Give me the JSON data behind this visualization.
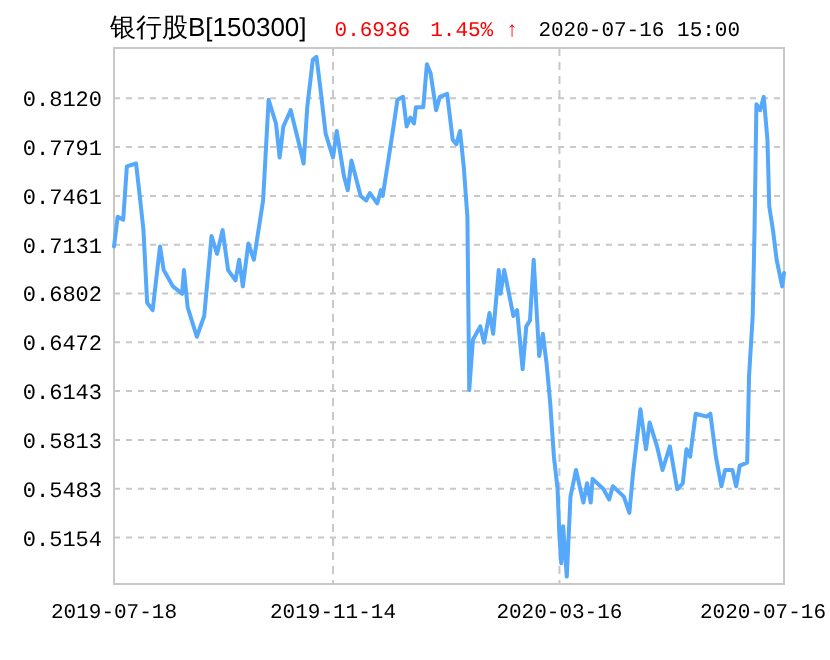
{
  "chart_data": {
    "type": "line",
    "title": "银行股B[150300]",
    "annotations": [
      "0.6936",
      "1.45% ↑",
      "2020-07-16 15:00"
    ],
    "xlim": [
      "2019-07-18",
      "2020-07-16"
    ],
    "xticks": [
      {
        "value": "2019-07-18",
        "label": "2019-07-18"
      },
      {
        "value": "2019-11-14",
        "label": "2019-11-14"
      },
      {
        "value": "2020-03-16",
        "label": "2020-03-16"
      },
      {
        "value": "2020-07-16",
        "label": "2020-07-16"
      }
    ],
    "ylim": [
      0.484,
      0.846
    ],
    "yticks": [
      {
        "value": 0.5154,
        "label": "0.5154"
      },
      {
        "value": 0.5483,
        "label": "0.5483"
      },
      {
        "value": 0.5813,
        "label": "0.5813"
      },
      {
        "value": 0.6143,
        "label": "0.6143"
      },
      {
        "value": 0.6472,
        "label": "0.6472"
      },
      {
        "value": 0.6802,
        "label": "0.6802"
      },
      {
        "value": 0.7131,
        "label": "0.7131"
      },
      {
        "value": 0.7461,
        "label": "0.7461"
      },
      {
        "value": 0.7791,
        "label": "0.7791"
      },
      {
        "value": 0.812,
        "label": "0.8120"
      }
    ],
    "grid": true,
    "marker": "none",
    "line_style": "solid",
    "x": [
      "2019-07-18",
      "2019-07-20",
      "2019-07-23",
      "2019-07-25",
      "2019-07-30",
      "2019-08-01",
      "2019-08-03",
      "2019-08-05",
      "2019-08-08",
      "2019-08-12",
      "2019-08-14",
      "2019-08-19",
      "2019-08-24",
      "2019-08-25",
      "2019-08-27",
      "2019-09-01",
      "2019-09-05",
      "2019-09-09",
      "2019-09-12",
      "2019-09-15",
      "2019-09-18",
      "2019-09-22",
      "2019-09-24",
      "2019-09-26",
      "2019-09-29",
      "2019-10-02",
      "2019-10-07",
      "2019-10-10",
      "2019-10-14",
      "2019-10-16",
      "2019-10-18",
      "2019-10-22",
      "2019-10-27",
      "2019-10-29",
      "2019-10-31",
      "2019-11-03",
      "2019-11-05",
      "2019-11-07",
      "2019-11-10",
      "2019-11-14",
      "2019-11-16",
      "2019-11-20",
      "2019-11-22",
      "2019-11-24",
      "2019-11-29",
      "2019-12-02",
      "2019-12-04",
      "2019-12-08",
      "2019-12-10",
      "2019-12-11",
      "2019-12-16",
      "2019-12-19",
      "2019-12-22",
      "2019-12-24",
      "2019-12-26",
      "2019-12-28",
      "2019-12-29",
      "2020-01-02",
      "2020-01-04",
      "2020-01-06",
      "2020-01-09",
      "2020-01-11",
      "2020-01-15",
      "2020-01-18",
      "2020-01-20",
      "2020-01-22",
      "2020-01-24",
      "2020-01-26",
      "2020-01-27",
      "2020-01-29",
      "2020-02-02",
      "2020-02-04",
      "2020-02-07",
      "2020-02-09",
      "2020-02-12",
      "2020-02-13",
      "2020-02-15",
      "2020-02-20",
      "2020-02-22",
      "2020-02-25",
      "2020-02-27",
      "2020-02-29",
      "2020-03-02",
      "2020-03-05",
      "2020-03-07",
      "2020-03-09",
      "2020-03-11",
      "2020-03-13",
      "2020-03-15",
      "2020-03-16",
      "2020-03-17",
      "2020-03-18",
      "2020-03-20",
      "2020-03-22",
      "2020-03-25",
      "2020-03-29",
      "2020-03-31",
      "2020-04-02",
      "2020-04-03",
      "2020-04-09",
      "2020-04-12",
      "2020-04-14",
      "2020-04-20",
      "2020-04-23",
      "2020-04-25",
      "2020-04-29",
      "2020-05-02",
      "2020-05-04",
      "2020-05-08",
      "2020-05-11",
      "2020-05-15",
      "2020-05-19",
      "2020-05-22",
      "2020-05-24",
      "2020-05-26",
      "2020-05-29",
      "2020-06-04",
      "2020-06-06",
      "2020-06-09",
      "2020-06-12",
      "2020-06-14",
      "2020-06-18",
      "2020-06-20",
      "2020-06-22",
      "2020-06-26",
      "2020-06-27",
      "2020-06-29",
      "2020-06-30",
      "2020-07-01",
      "2020-07-03",
      "2020-07-05",
      "2020-07-07",
      "2020-07-08",
      "2020-07-10",
      "2020-07-12",
      "2020-07-15",
      "2020-07-16"
    ],
    "series": [
      {
        "color": "#55a8fa",
        "values": [
          0.712,
          0.732,
          0.73,
          0.766,
          0.768,
          0.746,
          0.723,
          0.674,
          0.669,
          0.712,
          0.696,
          0.685,
          0.68,
          0.696,
          0.671,
          0.651,
          0.665,
          0.719,
          0.707,
          0.723,
          0.696,
          0.689,
          0.703,
          0.685,
          0.714,
          0.703,
          0.743,
          0.811,
          0.795,
          0.772,
          0.793,
          0.804,
          0.779,
          0.768,
          0.806,
          0.838,
          0.84,
          0.82,
          0.788,
          0.772,
          0.79,
          0.759,
          0.75,
          0.77,
          0.746,
          0.743,
          0.748,
          0.741,
          0.75,
          0.746,
          0.786,
          0.811,
          0.813,
          0.793,
          0.799,
          0.795,
          0.806,
          0.806,
          0.835,
          0.829,
          0.804,
          0.813,
          0.815,
          0.784,
          0.781,
          0.79,
          0.766,
          0.732,
          0.615,
          0.649,
          0.658,
          0.647,
          0.667,
          0.653,
          0.696,
          0.68,
          0.696,
          0.665,
          0.669,
          0.629,
          0.658,
          0.662,
          0.703,
          0.638,
          0.653,
          0.633,
          0.606,
          0.57,
          0.548,
          0.516,
          0.498,
          0.523,
          0.489,
          0.543,
          0.561,
          0.539,
          0.552,
          0.539,
          0.555,
          0.548,
          0.541,
          0.55,
          0.543,
          0.532,
          0.559,
          0.602,
          0.575,
          0.593,
          0.577,
          0.561,
          0.577,
          0.548,
          0.552,
          0.575,
          0.57,
          0.599,
          0.597,
          0.599,
          0.57,
          0.55,
          0.561,
          0.561,
          0.55,
          0.564,
          0.566,
          0.624,
          0.665,
          0.723,
          0.808,
          0.804,
          0.813,
          0.784,
          0.739,
          0.723,
          0.703,
          0.685,
          0.694
        ]
      }
    ]
  }
}
